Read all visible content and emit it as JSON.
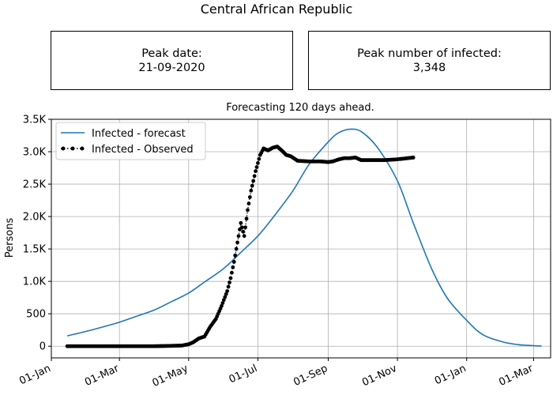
{
  "page": {
    "title": "Central African Republic"
  },
  "boxes": {
    "peak_date_label": "Peak date:",
    "peak_date_value": "21-09-2020",
    "peak_infected_label": "Peak number of infected:",
    "peak_infected_value": "3,348"
  },
  "chart_data": {
    "type": "line",
    "title": "Forecasting 120 days ahead.",
    "xlabel": "",
    "ylabel": "Persons",
    "x_range": [
      "2020-01-01",
      "2021-03-16"
    ],
    "ylim": [
      -180,
      3500
    ],
    "grid": true,
    "legend_position": "top-left",
    "x_ticks": [
      {
        "date": "2020-01-01",
        "label": "01-Jan"
      },
      {
        "date": "2020-03-01",
        "label": "01-Mar"
      },
      {
        "date": "2020-05-01",
        "label": "01-May"
      },
      {
        "date": "2020-07-01",
        "label": "01-Jul"
      },
      {
        "date": "2020-09-01",
        "label": "01-Sep"
      },
      {
        "date": "2020-11-01",
        "label": "01-Nov"
      },
      {
        "date": "2021-01-01",
        "label": "01-Jan"
      },
      {
        "date": "2021-03-01",
        "label": "01-Mar"
      }
    ],
    "y_ticks": [
      {
        "value": 0,
        "label": "0"
      },
      {
        "value": 500,
        "label": "500"
      },
      {
        "value": 1000,
        "label": "1.0K"
      },
      {
        "value": 1500,
        "label": "1.5K"
      },
      {
        "value": 2000,
        "label": "2.0K"
      },
      {
        "value": 2500,
        "label": "2.5K"
      },
      {
        "value": 3000,
        "label": "3.0K"
      },
      {
        "value": 3500,
        "label": "3.5K"
      }
    ],
    "series": [
      {
        "name": "Infected - forecast",
        "color": "#1f77b4",
        "style": "solid",
        "points": [
          [
            "2020-01-15",
            160
          ],
          [
            "2020-02-01",
            230
          ],
          [
            "2020-02-15",
            295
          ],
          [
            "2020-03-01",
            370
          ],
          [
            "2020-03-15",
            455
          ],
          [
            "2020-04-01",
            560
          ],
          [
            "2020-04-15",
            680
          ],
          [
            "2020-05-01",
            820
          ],
          [
            "2020-05-15",
            990
          ],
          [
            "2020-06-01",
            1200
          ],
          [
            "2020-06-15",
            1430
          ],
          [
            "2020-07-01",
            1700
          ],
          [
            "2020-07-15",
            2000
          ],
          [
            "2020-08-01",
            2400
          ],
          [
            "2020-08-15",
            2800
          ],
          [
            "2020-09-01",
            3150
          ],
          [
            "2020-09-10",
            3290
          ],
          [
            "2020-09-21",
            3348
          ],
          [
            "2020-10-01",
            3300
          ],
          [
            "2020-10-15",
            3050
          ],
          [
            "2020-11-01",
            2550
          ],
          [
            "2020-11-15",
            1900
          ],
          [
            "2020-12-01",
            1200
          ],
          [
            "2020-12-15",
            740
          ],
          [
            "2021-01-01",
            400
          ],
          [
            "2021-01-15",
            180
          ],
          [
            "2021-02-01",
            70
          ],
          [
            "2021-02-15",
            25
          ],
          [
            "2021-03-01",
            8
          ],
          [
            "2021-03-08",
            3
          ]
        ]
      },
      {
        "name": "Infected - Observed",
        "color": "#000000",
        "style": "dotted-markers",
        "points": [
          [
            "2020-01-15",
            0
          ],
          [
            "2020-02-01",
            0
          ],
          [
            "2020-03-01",
            0
          ],
          [
            "2020-04-01",
            0
          ],
          [
            "2020-04-15",
            5
          ],
          [
            "2020-04-25",
            10
          ],
          [
            "2020-05-01",
            30
          ],
          [
            "2020-05-05",
            60
          ],
          [
            "2020-05-10",
            120
          ],
          [
            "2020-05-15",
            150
          ],
          [
            "2020-05-20",
            300
          ],
          [
            "2020-05-25",
            420
          ],
          [
            "2020-05-30",
            620
          ],
          [
            "2020-06-04",
            850
          ],
          [
            "2020-06-07",
            1050
          ],
          [
            "2020-06-10",
            1300
          ],
          [
            "2020-06-13",
            1600
          ],
          [
            "2020-06-16",
            1900
          ],
          [
            "2020-06-19",
            1700
          ],
          [
            "2020-06-22",
            2100
          ],
          [
            "2020-06-25",
            2400
          ],
          [
            "2020-06-29",
            2700
          ],
          [
            "2020-07-03",
            2950
          ],
          [
            "2020-07-06",
            3050
          ],
          [
            "2020-07-10",
            3020
          ],
          [
            "2020-07-14",
            3060
          ],
          [
            "2020-07-18",
            3080
          ],
          [
            "2020-07-22",
            3020
          ],
          [
            "2020-07-26",
            2950
          ],
          [
            "2020-07-30",
            2930
          ],
          [
            "2020-08-05",
            2860
          ],
          [
            "2020-08-15",
            2850
          ],
          [
            "2020-08-25",
            2850
          ],
          [
            "2020-09-01",
            2840
          ],
          [
            "2020-09-05",
            2850
          ],
          [
            "2020-09-10",
            2880
          ],
          [
            "2020-09-15",
            2900
          ],
          [
            "2020-09-20",
            2900
          ],
          [
            "2020-09-25",
            2910
          ],
          [
            "2020-09-30",
            2870
          ],
          [
            "2020-10-10",
            2870
          ],
          [
            "2020-10-20",
            2870
          ],
          [
            "2020-10-30",
            2880
          ],
          [
            "2020-11-05",
            2890
          ],
          [
            "2020-11-10",
            2900
          ],
          [
            "2020-11-15",
            2910
          ]
        ]
      }
    ]
  }
}
